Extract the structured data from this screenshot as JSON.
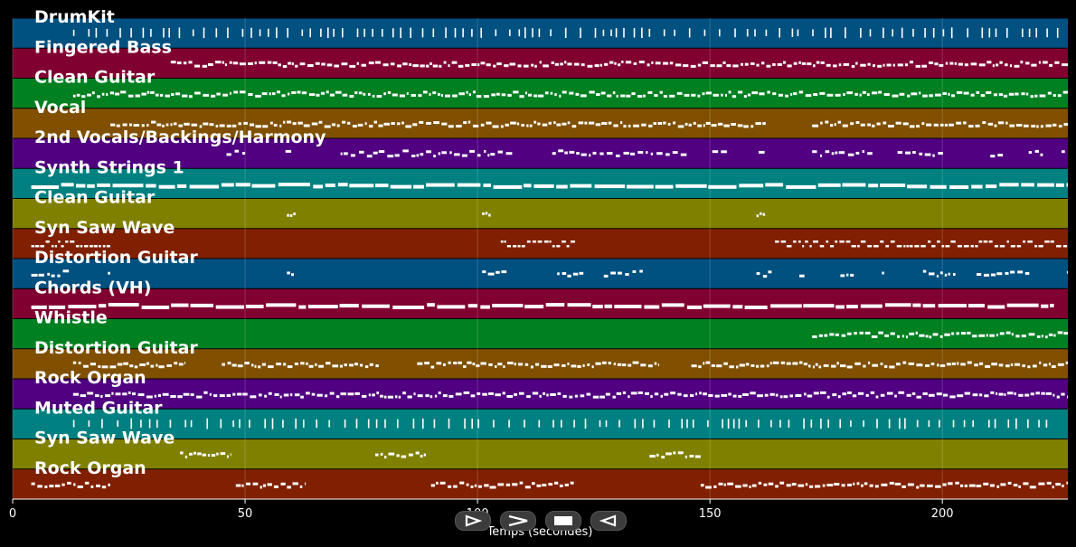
{
  "tracks": [
    {
      "name": "DrumKit",
      "color": "#005080",
      "pattern": "ticks",
      "segments": [
        [
          13,
          225
        ]
      ]
    },
    {
      "name": "Fingered Bass",
      "color": "#800030",
      "pattern": "dense",
      "segments": [
        [
          34,
          227
        ]
      ]
    },
    {
      "name": "Clean Guitar",
      "color": "#008020",
      "pattern": "dense",
      "segments": [
        [
          13,
          227
        ]
      ]
    },
    {
      "name": "Vocal",
      "color": "#805000",
      "pattern": "dense",
      "segments": [
        [
          21,
          162
        ],
        [
          172,
          227
        ]
      ]
    },
    {
      "name": "2nd Vocals/Backings/Harmony",
      "color": "#500080",
      "pattern": "sparse",
      "segments": [
        [
          46,
          162
        ],
        [
          172,
          227
        ]
      ]
    },
    {
      "name": "Synth Strings 1",
      "color": "#008080",
      "pattern": "long",
      "segments": [
        [
          4,
          227
        ]
      ]
    },
    {
      "name": "Clean Guitar",
      "color": "#808000",
      "pattern": "blips",
      "segments": [
        [
          59,
          61
        ],
        [
          101,
          103
        ],
        [
          160,
          162
        ]
      ]
    },
    {
      "name": "Syn Saw Wave",
      "color": "#802000",
      "pattern": "double",
      "segments": [
        [
          4,
          21
        ],
        [
          105,
          121
        ],
        [
          164,
          227
        ]
      ]
    },
    {
      "name": "Distortion Guitar",
      "color": "#005080",
      "pattern": "sparse",
      "segments": [
        [
          4,
          21
        ],
        [
          59,
          61
        ],
        [
          101,
          138
        ],
        [
          160,
          227
        ]
      ]
    },
    {
      "name": "Chords (VH)",
      "color": "#800030",
      "pattern": "long",
      "segments": [
        [
          4,
          224
        ]
      ]
    },
    {
      "name": "Whistle",
      "color": "#008020",
      "pattern": "dense",
      "segments": [
        [
          172,
          227
        ]
      ]
    },
    {
      "name": "Distortion Guitar",
      "color": "#805000",
      "pattern": "dense",
      "segments": [
        [
          13,
          37
        ],
        [
          45,
          79
        ],
        [
          87,
          139
        ],
        [
          146,
          227
        ]
      ]
    },
    {
      "name": "Rock Organ",
      "color": "#500080",
      "pattern": "dense",
      "segments": [
        [
          13,
          227
        ]
      ]
    },
    {
      "name": "Muted Guitar",
      "color": "#008080",
      "pattern": "ticks",
      "segments": [
        [
          13,
          225
        ]
      ]
    },
    {
      "name": "Syn Saw Wave",
      "color": "#808000",
      "pattern": "dense",
      "segments": [
        [
          36,
          47
        ],
        [
          78,
          89
        ],
        [
          137,
          148
        ]
      ]
    },
    {
      "name": "Rock Organ",
      "color": "#802000",
      "pattern": "dense",
      "segments": [
        [
          4,
          21
        ],
        [
          48,
          63
        ],
        [
          90,
          121
        ],
        [
          148,
          227
        ]
      ]
    }
  ],
  "x_axis": {
    "min": 0,
    "max": 227,
    "ticks": [
      0,
      50,
      100,
      150,
      200
    ],
    "tick_labels": [
      "0",
      "50",
      "100",
      "150",
      "200"
    ],
    "label": "Temps (secondes)"
  },
  "controls": [
    {
      "name": "play-button",
      "icon": "play-outline-icon"
    },
    {
      "name": "forward-button",
      "icon": "chevron-right-icon"
    },
    {
      "name": "stop-button",
      "icon": "stop-icon"
    },
    {
      "name": "rewind-button",
      "icon": "rewind-outline-icon"
    }
  ],
  "note_color": "#ffffff",
  "background": "#000000"
}
